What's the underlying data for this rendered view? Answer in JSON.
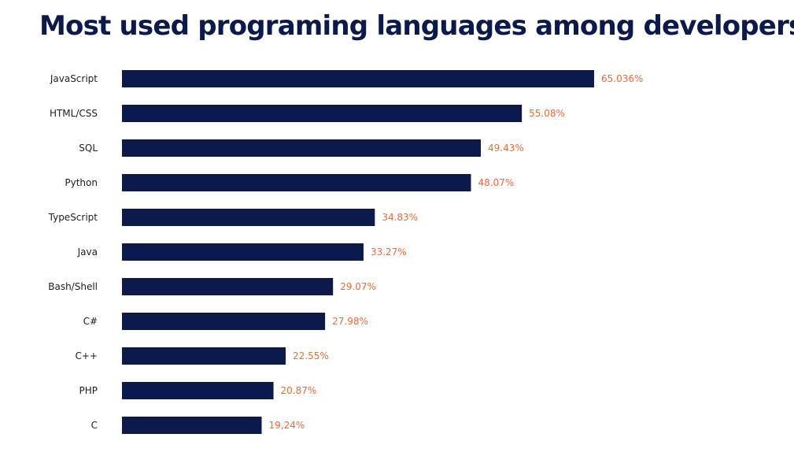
{
  "colors": {
    "bar": "#0b1a4a",
    "value_label": "#ee6a3a",
    "title": "#0b1a4a",
    "category_label": "#1d1d1d"
  },
  "chart_data": {
    "type": "bar",
    "orientation": "horizontal",
    "title": "Most used programing languages among developers",
    "xlabel": "",
    "ylabel": "",
    "grid": false,
    "legend": "none",
    "xlim": [
      0,
      65.036
    ],
    "categories": [
      "JavaScript",
      "HTML/CSS",
      "SQL",
      "Python",
      "TypeScript",
      "Java",
      "Bash/Shell",
      "C#",
      "C++",
      "PHP",
      "C"
    ],
    "values": [
      65.036,
      55.08,
      49.43,
      48.07,
      34.83,
      33.27,
      29.07,
      27.98,
      22.55,
      20.87,
      19.24
    ],
    "value_labels": [
      "65.036%",
      "55.08%",
      "49.43%",
      "48.07%",
      "34.83%",
      "33.27%",
      "29.07%",
      "27.98%",
      "22.55%",
      "20.87%",
      "19,24%"
    ]
  }
}
